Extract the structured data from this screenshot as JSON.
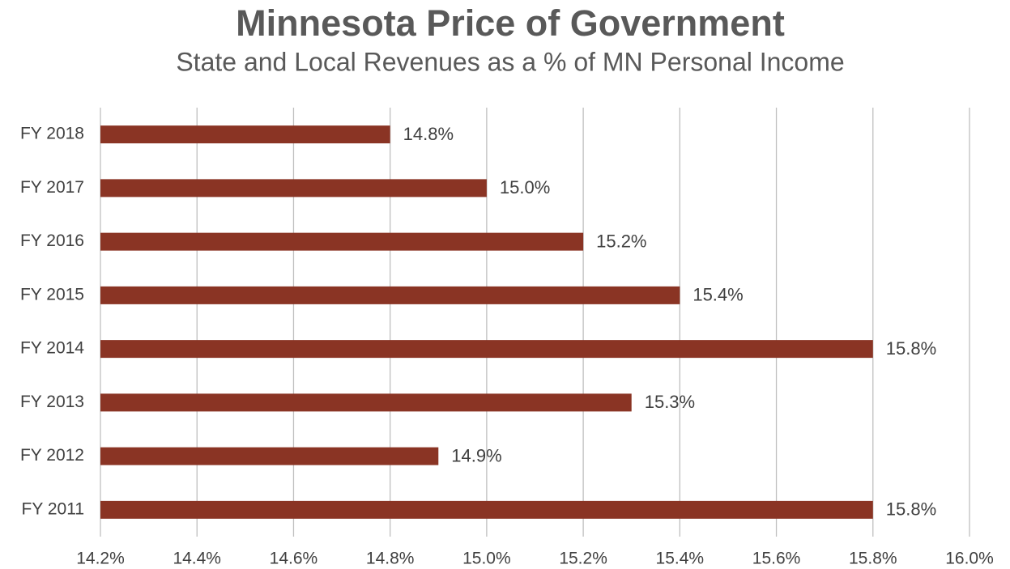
{
  "chart_data": {
    "type": "barh",
    "title": "Minnesota Price of Government",
    "subtitle": "State and Local Revenues as a % of MN Personal Income",
    "categories": [
      "FY 2018",
      "FY 2017",
      "FY 2016",
      "FY 2015",
      "FY 2014",
      "FY 2013",
      "FY 2012",
      "FY 2011"
    ],
    "values": [
      14.8,
      15.0,
      15.2,
      15.4,
      15.8,
      15.3,
      14.9,
      15.8
    ],
    "value_labels": [
      "14.8%",
      "15.0%",
      "15.2%",
      "15.4%",
      "15.8%",
      "15.3%",
      "14.9%",
      "15.8%"
    ],
    "color": "#8a3424",
    "xlim": [
      14.2,
      16.0
    ],
    "xticks": [
      {
        "value": 14.2,
        "label": "14.2%"
      },
      {
        "value": 14.4,
        "label": "14.4%"
      },
      {
        "value": 14.6,
        "label": "14.6%"
      },
      {
        "value": 14.8,
        "label": "14.8%"
      },
      {
        "value": 15.0,
        "label": "15.0%"
      },
      {
        "value": 15.2,
        "label": "15.2%"
      },
      {
        "value": 15.4,
        "label": "15.4%"
      },
      {
        "value": 15.6,
        "label": "15.6%"
      },
      {
        "value": 15.8,
        "label": "15.8%"
      },
      {
        "value": 16.0,
        "label": "16.0%"
      }
    ],
    "grid": true
  }
}
